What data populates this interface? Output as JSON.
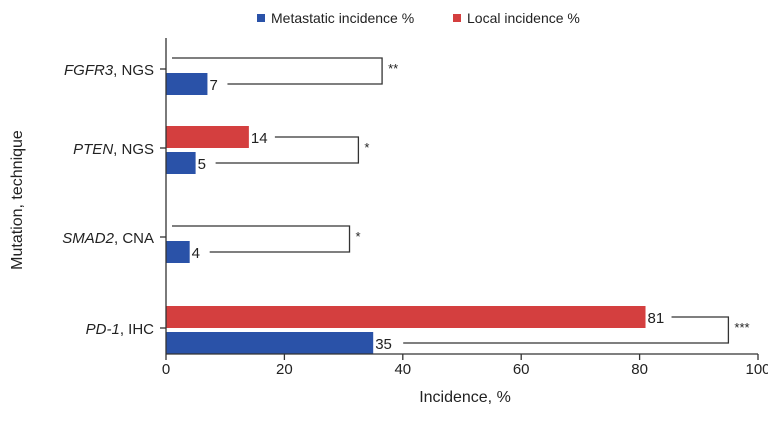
{
  "chart_data": {
    "type": "bar",
    "orientation": "horizontal",
    "categories": [
      {
        "gene": "FGFR3",
        "technique": ", NGS"
      },
      {
        "gene": "PTEN",
        "technique": ", NGS"
      },
      {
        "gene": "SMAD2",
        "technique": ", CNA"
      },
      {
        "gene": "PD-1",
        "technique": ", IHC"
      }
    ],
    "series": [
      {
        "name": "Local incidence %",
        "color": "#d43f3f",
        "values": [
          0,
          14,
          0,
          81
        ],
        "labels": [
          "",
          "14",
          "",
          "81"
        ]
      },
      {
        "name": "Metastatic incidence %",
        "color": "#2a52a8",
        "values": [
          7,
          5,
          4,
          35
        ],
        "labels": [
          "7",
          "5",
          "4",
          "35"
        ]
      }
    ],
    "significance": [
      "**",
      "*",
      "*",
      "***"
    ],
    "bracket_x": [
      36.5,
      32.5,
      31,
      95
    ],
    "xlabel": "Incidence, %",
    "ylabel": "Mutation, technique",
    "xlim": [
      0,
      100
    ],
    "xticks": [
      0,
      20,
      40,
      60,
      80,
      100
    ],
    "legend": {
      "position": "top",
      "items": [
        {
          "label": "Metastatic incidence %",
          "color": "#2a52a8"
        },
        {
          "label": "Local incidence %",
          "color": "#d43f3f"
        }
      ]
    },
    "grid": false
  }
}
